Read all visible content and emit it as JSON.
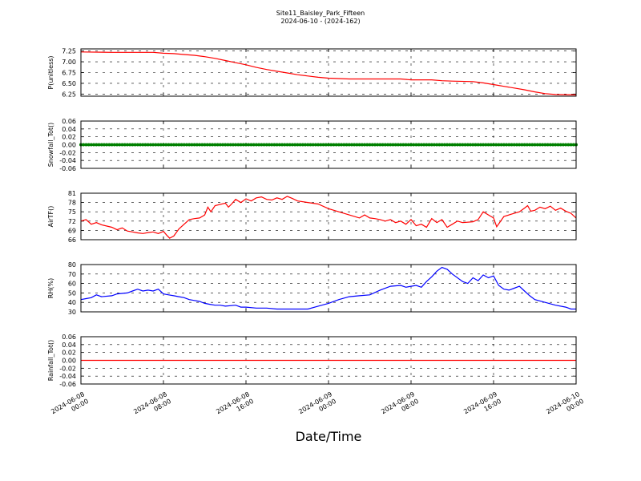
{
  "chart_data": {
    "title": "Site11_Baisley_Park_Fifteen",
    "subtitle": "2024-06-10 - (2024-162)",
    "xlabel": "Date/Time",
    "x_ticks": [
      {
        "line1": "2024-06-08",
        "line2": "00:00",
        "hours": 0
      },
      {
        "line1": "2024-06-08",
        "line2": "08:00",
        "hours": 8
      },
      {
        "line1": "2024-06-08",
        "line2": "16:00",
        "hours": 16
      },
      {
        "line1": "2024-06-09",
        "line2": "00:00",
        "hours": 24
      },
      {
        "line1": "2024-06-09",
        "line2": "08:00",
        "hours": 32
      },
      {
        "line1": "2024-06-09",
        "line2": "16:00",
        "hours": 40
      },
      {
        "line1": "2024-06-10",
        "line2": "00:00",
        "hours": 48
      }
    ],
    "xlim_hours": [
      0,
      48
    ],
    "panels": [
      {
        "type": "line",
        "ylabel": "P(unitless)",
        "ylim": [
          6.2,
          7.3
        ],
        "yticks": [
          "7.25",
          "7.00",
          "6.75",
          "6.50",
          "6.25"
        ],
        "ytick_values": [
          7.25,
          7.0,
          6.75,
          6.5,
          6.25
        ],
        "color": "#ff0000",
        "series": [
          [
            0,
            7.23
          ],
          [
            3,
            7.22
          ],
          [
            5,
            7.22
          ],
          [
            7,
            7.22
          ],
          [
            8,
            7.2
          ],
          [
            9,
            7.19
          ],
          [
            10,
            7.17
          ],
          [
            11,
            7.15
          ],
          [
            12,
            7.12
          ],
          [
            13,
            7.08
          ],
          [
            14,
            7.03
          ],
          [
            15,
            6.98
          ],
          [
            16,
            6.93
          ],
          [
            17,
            6.87
          ],
          [
            18,
            6.82
          ],
          [
            19,
            6.78
          ],
          [
            20,
            6.74
          ],
          [
            21,
            6.7
          ],
          [
            22,
            6.67
          ],
          [
            23,
            6.64
          ],
          [
            24,
            6.62
          ],
          [
            25,
            6.61
          ],
          [
            26,
            6.6
          ],
          [
            29,
            6.6
          ],
          [
            31,
            6.6
          ],
          [
            32,
            6.58
          ],
          [
            34,
            6.58
          ],
          [
            35,
            6.56
          ],
          [
            36,
            6.55
          ],
          [
            38,
            6.54
          ],
          [
            39,
            6.51
          ],
          [
            40,
            6.47
          ],
          [
            41,
            6.43
          ],
          [
            42,
            6.39
          ],
          [
            43,
            6.35
          ],
          [
            44,
            6.3
          ],
          [
            45,
            6.26
          ],
          [
            46,
            6.24
          ],
          [
            48,
            6.23
          ]
        ]
      },
      {
        "type": "scatter",
        "ylabel": "Snowfall_Tot()",
        "ylim": [
          -0.06,
          0.06
        ],
        "yticks": [
          "0.06",
          "0.04",
          "0.02",
          "0.00",
          "-0.02",
          "-0.04",
          "-0.06"
        ],
        "ytick_values": [
          0.06,
          0.04,
          0.02,
          0.0,
          -0.02,
          -0.04,
          -0.06
        ],
        "color": "#008000",
        "constant_value": 0.0
      },
      {
        "type": "line",
        "ylabel": "AirTF()",
        "ylim": [
          66,
          81
        ],
        "yticks": [
          "81",
          "78",
          "75",
          "72",
          "69",
          "66"
        ],
        "ytick_values": [
          81,
          78,
          75,
          72,
          69,
          66
        ],
        "color": "#ff0000",
        "series": [
          [
            0,
            72
          ],
          [
            0.5,
            72.5
          ],
          [
            1,
            71
          ],
          [
            1.5,
            71.5
          ],
          [
            2,
            70.8
          ],
          [
            3,
            70
          ],
          [
            3.5,
            69.2
          ],
          [
            4,
            69.8
          ],
          [
            4.5,
            68.8
          ],
          [
            5,
            68.5
          ],
          [
            5.5,
            68.2
          ],
          [
            6,
            68
          ],
          [
            6.5,
            68.3
          ],
          [
            7,
            68.5
          ],
          [
            7.5,
            68
          ],
          [
            8,
            68.7
          ],
          [
            8.3,
            67.5
          ],
          [
            8.6,
            66.5
          ],
          [
            9,
            67.2
          ],
          [
            9.5,
            69.5
          ],
          [
            10,
            71
          ],
          [
            10.5,
            72.5
          ],
          [
            11,
            72.8
          ],
          [
            11.5,
            73
          ],
          [
            12,
            74
          ],
          [
            12.3,
            76.5
          ],
          [
            12.6,
            75
          ],
          [
            13,
            77
          ],
          [
            14,
            77.8
          ],
          [
            14.3,
            76.5
          ],
          [
            14.6,
            77.5
          ],
          [
            15,
            79
          ],
          [
            15.5,
            78
          ],
          [
            16,
            79.2
          ],
          [
            16.5,
            78.5
          ],
          [
            17,
            79.5
          ],
          [
            17.5,
            79.8
          ],
          [
            18,
            79
          ],
          [
            18.5,
            78.8
          ],
          [
            19,
            79.5
          ],
          [
            19.5,
            79
          ],
          [
            20,
            80
          ],
          [
            20.5,
            79.3
          ],
          [
            21,
            78.5
          ],
          [
            22,
            78
          ],
          [
            23,
            77.5
          ],
          [
            24,
            76
          ],
          [
            25,
            75
          ],
          [
            26,
            74
          ],
          [
            27,
            73
          ],
          [
            27.5,
            74
          ],
          [
            28,
            73
          ],
          [
            28.5,
            72.8
          ],
          [
            29,
            72.5
          ],
          [
            29.5,
            72
          ],
          [
            30,
            72.5
          ],
          [
            30.5,
            71.5
          ],
          [
            31,
            72
          ],
          [
            31.5,
            71
          ],
          [
            32,
            72.5
          ],
          [
            32.5,
            70.5
          ],
          [
            33,
            71
          ],
          [
            33.5,
            70
          ],
          [
            34,
            72.8
          ],
          [
            34.5,
            71.5
          ],
          [
            35,
            72.5
          ],
          [
            35.5,
            70
          ],
          [
            36,
            71
          ],
          [
            36.5,
            72
          ],
          [
            37,
            71.5
          ],
          [
            38,
            71.8
          ],
          [
            38.5,
            72.5
          ],
          [
            39,
            75
          ],
          [
            39.5,
            74
          ],
          [
            40,
            73
          ],
          [
            40.3,
            70.2
          ],
          [
            41,
            73.5
          ],
          [
            42,
            74.5
          ],
          [
            42.5,
            75
          ],
          [
            43,
            76.2
          ],
          [
            43.3,
            77
          ],
          [
            43.6,
            75.2
          ],
          [
            44,
            75.5
          ],
          [
            44.5,
            76.5
          ],
          [
            45,
            76
          ],
          [
            45.5,
            76.8
          ],
          [
            46,
            75.5
          ],
          [
            46.5,
            76.2
          ],
          [
            47,
            75.2
          ],
          [
            47.5,
            74.5
          ],
          [
            48,
            73
          ]
        ]
      },
      {
        "type": "line",
        "ylabel": "RH(%)",
        "ylim": [
          30,
          80
        ],
        "yticks": [
          "80",
          "70",
          "60",
          "50",
          "40",
          "30"
        ],
        "ytick_values": [
          80,
          70,
          60,
          50,
          40,
          30
        ],
        "color": "#0000ff",
        "series": [
          [
            0,
            43
          ],
          [
            0.5,
            44
          ],
          [
            1,
            45
          ],
          [
            1.5,
            48
          ],
          [
            2,
            46
          ],
          [
            3,
            47
          ],
          [
            3.5,
            49
          ],
          [
            4,
            49.5
          ],
          [
            4.5,
            50
          ],
          [
            5,
            52
          ],
          [
            5.5,
            54
          ],
          [
            6,
            52
          ],
          [
            6.5,
            53
          ],
          [
            7,
            52
          ],
          [
            7.5,
            54
          ],
          [
            8,
            49
          ],
          [
            8.5,
            48
          ],
          [
            9,
            47
          ],
          [
            9.5,
            46
          ],
          [
            10,
            45
          ],
          [
            10.5,
            43
          ],
          [
            11,
            42
          ],
          [
            11.5,
            41
          ],
          [
            12,
            39
          ],
          [
            12.5,
            38
          ],
          [
            13,
            37
          ],
          [
            13.5,
            37
          ],
          [
            14,
            36
          ],
          [
            15,
            37
          ],
          [
            15.5,
            35
          ],
          [
            16,
            35
          ],
          [
            17,
            34
          ],
          [
            18,
            34
          ],
          [
            19,
            33
          ],
          [
            20,
            33
          ],
          [
            21,
            33
          ],
          [
            22,
            33
          ],
          [
            23,
            36
          ],
          [
            24,
            39
          ],
          [
            25,
            43
          ],
          [
            26,
            46
          ],
          [
            27,
            47
          ],
          [
            28,
            48
          ],
          [
            29,
            53
          ],
          [
            30,
            57
          ],
          [
            31,
            58
          ],
          [
            31.5,
            56
          ],
          [
            32,
            57
          ],
          [
            32.5,
            58
          ],
          [
            33,
            56
          ],
          [
            33.5,
            62
          ],
          [
            34,
            67
          ],
          [
            34.5,
            73
          ],
          [
            35,
            77
          ],
          [
            35.5,
            75
          ],
          [
            36,
            70
          ],
          [
            37,
            62
          ],
          [
            37.5,
            60
          ],
          [
            38,
            66
          ],
          [
            38.5,
            63
          ],
          [
            39,
            69
          ],
          [
            39.5,
            66
          ],
          [
            40,
            68
          ],
          [
            40.5,
            58
          ],
          [
            41,
            54
          ],
          [
            41.5,
            53
          ],
          [
            42,
            55
          ],
          [
            42.5,
            57
          ],
          [
            43,
            52
          ],
          [
            43.5,
            47
          ],
          [
            44,
            43
          ],
          [
            45,
            40
          ],
          [
            46,
            37
          ],
          [
            47,
            35
          ],
          [
            47.5,
            33
          ],
          [
            48,
            33
          ]
        ]
      },
      {
        "type": "line",
        "ylabel": "Rainfall_Tot()",
        "ylim": [
          -0.06,
          0.06
        ],
        "yticks": [
          "0.06",
          "0.04",
          "0.02",
          "0.00",
          "-0.02",
          "-0.04",
          "-0.06"
        ],
        "ytick_values": [
          0.06,
          0.04,
          0.02,
          0.0,
          -0.02,
          -0.04,
          -0.06
        ],
        "color": "#ff0000",
        "series": [
          [
            0,
            0
          ],
          [
            48,
            0
          ]
        ]
      }
    ]
  }
}
